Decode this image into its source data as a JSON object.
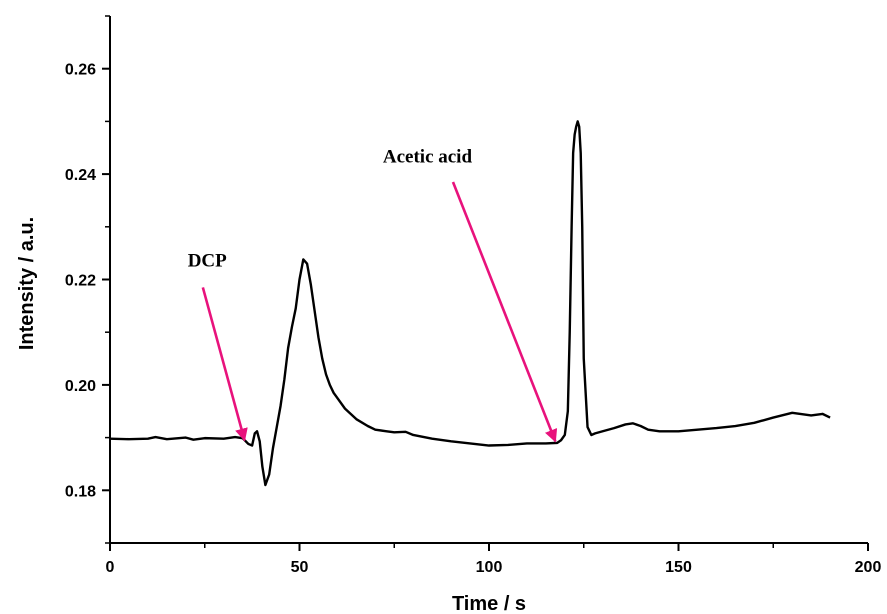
{
  "chart_data": {
    "type": "line",
    "title": "",
    "xlabel": "Time / s",
    "ylabel": "Intensity / a.u.",
    "xlim": [
      0,
      200
    ],
    "ylim": [
      0.17,
      0.27
    ],
    "xticks": [
      "0",
      "50",
      "100",
      "150",
      "200"
    ],
    "yticks": [
      "0.18",
      "0.20",
      "0.22",
      "0.24",
      "0.26"
    ],
    "grid": false,
    "legend": "none",
    "line_color": "#000000",
    "annotation_color": "#e8127c",
    "series": [
      {
        "x": [
          0,
          5,
          10,
          12,
          15,
          20,
          22,
          25,
          30,
          33,
          35,
          36.5,
          37.5,
          38.2,
          38.8,
          39.5,
          40.2,
          41,
          42,
          43,
          44,
          45,
          46,
          47,
          48,
          49,
          50,
          51,
          52,
          53,
          54,
          55,
          56,
          57,
          58,
          59,
          60,
          62,
          65,
          68,
          70,
          73,
          75,
          78,
          80,
          85,
          90,
          95,
          100,
          105,
          110,
          115,
          118,
          119,
          120,
          120.8,
          121.3,
          121.8,
          122.2,
          122.6,
          123,
          123.4,
          123.8,
          124.2,
          124.6,
          125,
          126,
          127,
          128,
          130,
          133,
          136,
          138,
          140,
          142,
          145,
          150,
          155,
          160,
          165,
          170,
          175,
          180,
          185,
          188,
          190
        ],
        "y": [
          0.1898,
          0.1897,
          0.1898,
          0.1901,
          0.1897,
          0.19,
          0.1896,
          0.1899,
          0.1898,
          0.1901,
          0.1899,
          0.1888,
          0.1885,
          0.1908,
          0.1912,
          0.1893,
          0.1845,
          0.181,
          0.183,
          0.188,
          0.192,
          0.196,
          0.201,
          0.207,
          0.211,
          0.2145,
          0.22,
          0.2238,
          0.223,
          0.219,
          0.214,
          0.209,
          0.205,
          0.202,
          0.2,
          0.1985,
          0.1975,
          0.1955,
          0.1935,
          0.1922,
          0.1915,
          0.1912,
          0.191,
          0.1911,
          0.1905,
          0.1898,
          0.1893,
          0.1889,
          0.1885,
          0.1886,
          0.1889,
          0.1889,
          0.189,
          0.1895,
          0.1905,
          0.195,
          0.21,
          0.23,
          0.244,
          0.2475,
          0.249,
          0.25,
          0.249,
          0.244,
          0.23,
          0.205,
          0.192,
          0.1905,
          0.1908,
          0.1912,
          0.1918,
          0.1925,
          0.1927,
          0.1922,
          0.1915,
          0.1912,
          0.1912,
          0.1915,
          0.1918,
          0.1922,
          0.1928,
          0.1938,
          0.1947,
          0.1942,
          0.1945,
          0.1938
        ]
      }
    ],
    "annotations": [
      {
        "text": "DCP",
        "label_x": 20.5,
        "label_y": 0.2225,
        "arrow_from": [
          24.5,
          0.2185
        ],
        "arrow_to": [
          35.5,
          0.1895
        ]
      },
      {
        "text": "Acetic acid",
        "label_x": 72,
        "label_y": 0.2422,
        "arrow_from": [
          90.5,
          0.2385
        ],
        "arrow_to": [
          117.5,
          0.1893
        ]
      }
    ]
  }
}
